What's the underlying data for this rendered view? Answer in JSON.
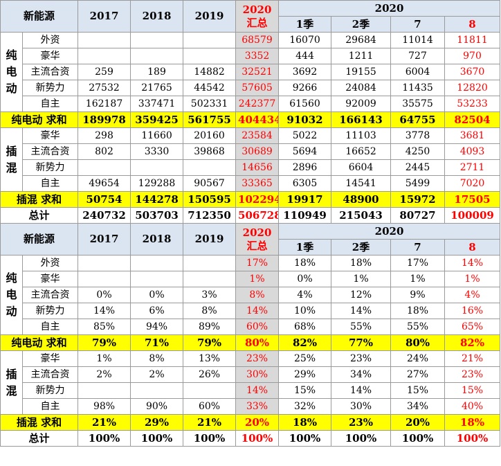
{
  "header": {
    "corner": "新能源",
    "years": [
      "2017",
      "2018",
      "2019"
    ],
    "sum_year": "2020",
    "sum_label": "汇总",
    "group_2020": "2020",
    "sub_cols": [
      "1季",
      "2季",
      "7",
      "8"
    ]
  },
  "volume": {
    "ev_group_label": "纯\n电\n动",
    "phev_group_label": "插\n混",
    "ev_rows": [
      {
        "label": "外资",
        "c2017": "",
        "c2018": "",
        "c2019": "",
        "sum": "68579",
        "q1": "16070",
        "q2": "29684",
        "m7": "11014",
        "m8": "11811"
      },
      {
        "label": "豪华",
        "c2017": "",
        "c2018": "",
        "c2019": "",
        "sum": "3352",
        "q1": "444",
        "q2": "1211",
        "m7": "727",
        "m8": "970"
      },
      {
        "label": "主流合资",
        "c2017": "259",
        "c2018": "189",
        "c2019": "14882",
        "sum": "32521",
        "q1": "3692",
        "q2": "19155",
        "m7": "6004",
        "m8": "3670"
      },
      {
        "label": "新势力",
        "c2017": "27532",
        "c2018": "21765",
        "c2019": "44542",
        "sum": "57605",
        "q1": "9266",
        "q2": "24084",
        "m7": "11435",
        "m8": "12820"
      },
      {
        "label": "自主",
        "c2017": "162187",
        "c2018": "337471",
        "c2019": "502331",
        "sum": "242377",
        "q1": "61560",
        "q2": "92009",
        "m7": "35575",
        "m8": "53233"
      }
    ],
    "ev_sum": {
      "label": "纯电动  求和",
      "c2017": "189978",
      "c2018": "359425",
      "c2019": "561755",
      "sum": "404434",
      "q1": "91032",
      "q2": "166143",
      "m7": "64755",
      "m8": "82504"
    },
    "phev_rows": [
      {
        "label": "豪华",
        "c2017": "298",
        "c2018": "11660",
        "c2019": "20160",
        "sum": "23584",
        "q1": "5022",
        "q2": "11103",
        "m7": "3778",
        "m8": "3681"
      },
      {
        "label": "主流合资",
        "c2017": "802",
        "c2018": "3330",
        "c2019": "39868",
        "sum": "30689",
        "q1": "5694",
        "q2": "16652",
        "m7": "4250",
        "m8": "4093"
      },
      {
        "label": "新势力",
        "c2017": "",
        "c2018": "",
        "c2019": "",
        "sum": "14656",
        "q1": "2896",
        "q2": "6604",
        "m7": "2445",
        "m8": "2711"
      },
      {
        "label": "自主",
        "c2017": "49654",
        "c2018": "129288",
        "c2019": "90567",
        "sum": "33365",
        "q1": "6305",
        "q2": "14541",
        "m7": "5499",
        "m8": "7020"
      }
    ],
    "phev_sum": {
      "label": "插混  求和",
      "c2017": "50754",
      "c2018": "144278",
      "c2019": "150595",
      "sum": "102294",
      "q1": "19917",
      "q2": "48900",
      "m7": "15972",
      "m8": "17505"
    },
    "total": {
      "label": "总计",
      "c2017": "240732",
      "c2018": "503703",
      "c2019": "712350",
      "sum": "506728",
      "q1": "110949",
      "q2": "215043",
      "m7": "80727",
      "m8": "100009"
    }
  },
  "share": {
    "ev_group_label": "纯\n电\n动",
    "phev_group_label": "插\n混",
    "ev_rows": [
      {
        "label": "外资",
        "c2017": "",
        "c2018": "",
        "c2019": "",
        "sum": "17%",
        "q1": "18%",
        "q2": "18%",
        "m7": "17%",
        "m8": "14%"
      },
      {
        "label": "豪华",
        "c2017": "",
        "c2018": "",
        "c2019": "",
        "sum": "1%",
        "q1": "0%",
        "q2": "1%",
        "m7": "1%",
        "m8": "1%"
      },
      {
        "label": "主流合资",
        "c2017": "0%",
        "c2018": "0%",
        "c2019": "3%",
        "sum": "8%",
        "q1": "4%",
        "q2": "12%",
        "m7": "9%",
        "m8": "4%"
      },
      {
        "label": "新势力",
        "c2017": "14%",
        "c2018": "6%",
        "c2019": "8%",
        "sum": "14%",
        "q1": "10%",
        "q2": "14%",
        "m7": "18%",
        "m8": "16%"
      },
      {
        "label": "自主",
        "c2017": "85%",
        "c2018": "94%",
        "c2019": "89%",
        "sum": "60%",
        "q1": "68%",
        "q2": "55%",
        "m7": "55%",
        "m8": "65%"
      }
    ],
    "ev_sum": {
      "label": "纯电动  求和",
      "c2017": "79%",
      "c2018": "71%",
      "c2019": "79%",
      "sum": "80%",
      "q1": "82%",
      "q2": "77%",
      "m7": "80%",
      "m8": "82%"
    },
    "phev_rows": [
      {
        "label": "豪华",
        "c2017": "1%",
        "c2018": "8%",
        "c2019": "13%",
        "sum": "23%",
        "q1": "25%",
        "q2": "23%",
        "m7": "24%",
        "m8": "21%"
      },
      {
        "label": "主流合资",
        "c2017": "2%",
        "c2018": "2%",
        "c2019": "26%",
        "sum": "30%",
        "q1": "29%",
        "q2": "34%",
        "m7": "27%",
        "m8": "23%"
      },
      {
        "label": "新势力",
        "c2017": "",
        "c2018": "",
        "c2019": "",
        "sum": "14%",
        "q1": "15%",
        "q2": "14%",
        "m7": "15%",
        "m8": "15%"
      },
      {
        "label": "自主",
        "c2017": "98%",
        "c2018": "90%",
        "c2019": "60%",
        "sum": "33%",
        "q1": "32%",
        "q2": "30%",
        "m7": "34%",
        "m8": "40%"
      }
    ],
    "phev_sum": {
      "label": "插混  求和",
      "c2017": "21%",
      "c2018": "29%",
      "c2019": "21%",
      "sum": "20%",
      "q1": "18%",
      "q2": "23%",
      "m7": "20%",
      "m8": "18%"
    },
    "total": {
      "label": "总计",
      "c2017": "100%",
      "c2018": "100%",
      "c2019": "100%",
      "sum": "100%",
      "q1": "100%",
      "q2": "100%",
      "m7": "100%",
      "m8": "100%"
    }
  },
  "colors": {
    "header_bg": "#dbe5f1",
    "sum_bg": "#d9d9d9",
    "highlight": "#ffff00",
    "accent": "#ff0000"
  }
}
